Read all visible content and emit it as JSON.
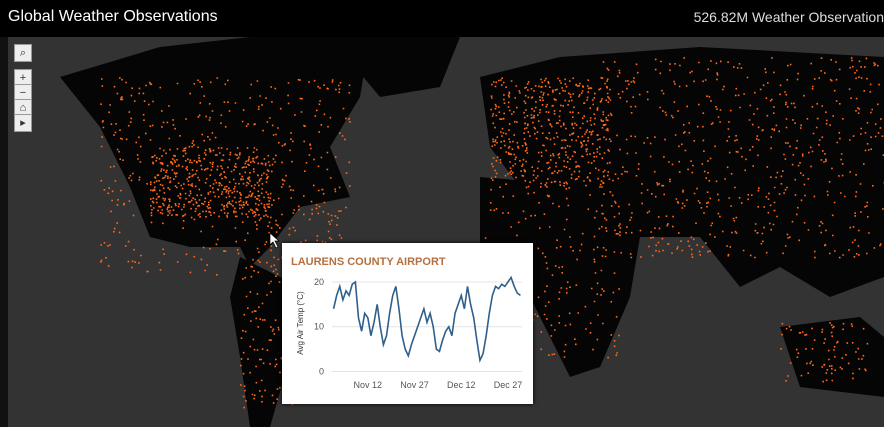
{
  "header": {
    "title": "Global Weather Observations",
    "stat": "526.82M Weather Observation"
  },
  "chart_data": {
    "type": "line",
    "title": "LAURENS COUNTY AIRPORT",
    "y_label": "Avg Air Temp (°C)",
    "categories": [
      null,
      null,
      null,
      null,
      null,
      null,
      null,
      null,
      null,
      null,
      null,
      "Nov 12",
      null,
      null,
      null,
      null,
      null,
      null,
      null,
      null,
      null,
      null,
      null,
      null,
      null,
      null,
      "Nov 27",
      null,
      null,
      null,
      null,
      null,
      null,
      null,
      null,
      null,
      null,
      null,
      null,
      null,
      null,
      "Dec 12",
      null,
      null,
      null,
      null,
      null,
      null,
      null,
      null,
      null,
      null,
      null,
      null,
      null,
      null,
      "Dec 27",
      null,
      null,
      null,
      null
    ],
    "series": [
      {
        "name": "Avg Air Temp",
        "color": "#2f5f8a",
        "values": [
          14,
          17,
          19,
          16,
          18,
          17,
          19.5,
          20,
          12,
          9,
          13,
          12,
          8,
          11,
          15,
          10,
          6,
          8,
          13,
          17,
          19,
          14,
          8,
          5,
          3.5,
          6,
          8,
          10,
          12,
          14,
          11,
          13,
          10,
          5,
          4.5,
          7,
          9,
          10,
          8,
          13,
          15,
          17,
          14,
          19,
          15,
          12,
          7,
          2.5,
          4,
          8,
          13,
          17,
          19,
          18.5,
          19.5,
          19,
          20,
          21,
          19,
          17.5,
          17
        ]
      }
    ],
    "ylim": [
      -1,
      22
    ],
    "yticks": [
      0,
      10,
      20
    ],
    "grid": true
  }
}
